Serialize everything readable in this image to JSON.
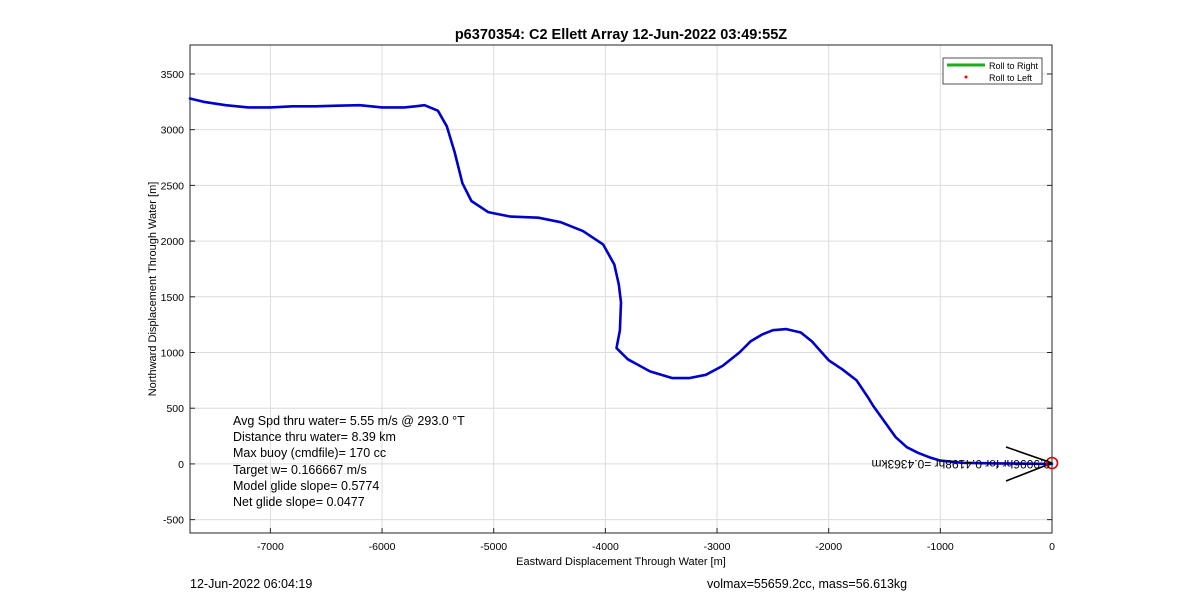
{
  "chart_data": {
    "type": "line",
    "title": "p6370354: C2 Ellett Array 12-Jun-2022 03:49:55Z",
    "xlabel": "Eastward Displacement Through Water [m]",
    "ylabel": "Northward Displacement Through Water [m]",
    "xlim": [
      -7720,
      0
    ],
    "ylim": [
      -620,
      3760
    ],
    "xticks": [
      -7000,
      -6000,
      -5000,
      -4000,
      -3000,
      -2000,
      -1000,
      0
    ],
    "yticks": [
      -500,
      0,
      500,
      1000,
      1500,
      2000,
      2500,
      3000,
      3500
    ],
    "grid": true,
    "legend": {
      "position": "top-right",
      "entries": [
        {
          "label": "Roll to Right",
          "color": "#22aa22",
          "style": "line"
        },
        {
          "label": "Roll to Left",
          "color": "#ff0000",
          "style": "dot"
        }
      ]
    },
    "series": [
      {
        "color": "#0000cc",
        "x": [
          -7720,
          -7600,
          -7400,
          -7200,
          -7000,
          -6800,
          -6600,
          -6400,
          -6200,
          -6000,
          -5800,
          -5700,
          -5620,
          -5500,
          -5420,
          -5350,
          -5280,
          -5200,
          -5050,
          -4850,
          -4600,
          -4400,
          -4200,
          -4020,
          -3920,
          -3880,
          -3860,
          -3870,
          -3900,
          -3800,
          -3600,
          -3400,
          -3250,
          -3100,
          -2950,
          -2800,
          -2700,
          -2600,
          -2500,
          -2380,
          -2250,
          -2150,
          -2000,
          -1880,
          -1750,
          -1650,
          -1600,
          -1500,
          -1400,
          -1300,
          -1200,
          -1100,
          -1000,
          -800,
          -500,
          -200,
          0
        ],
        "y": [
          3280,
          3250,
          3220,
          3200,
          3200,
          3210,
          3210,
          3215,
          3220,
          3200,
          3200,
          3210,
          3220,
          3170,
          3030,
          2800,
          2520,
          2360,
          2260,
          2220,
          2210,
          2170,
          2090,
          1970,
          1790,
          1610,
          1450,
          1200,
          1040,
          940,
          830,
          770,
          770,
          800,
          880,
          1000,
          1100,
          1160,
          1200,
          1210,
          1180,
          1100,
          930,
          850,
          750,
          600,
          520,
          380,
          240,
          150,
          100,
          60,
          30,
          10,
          5,
          2,
          0
        ]
      }
    ],
    "annotations": [
      "Avg Spd thru water=  5.55 m/s @ 293.0 °T",
      "Distance thru water=  8.39 km",
      "Max buoy (cmdfile)= 170 cc",
      "Target w= 0.166667 m/s",
      "Model glide slope= 0.5774",
      "Net glide slope= 0.0477"
    ],
    "end_label": "0.9096hr for 0.4198hr =0.4363km"
  },
  "footer": {
    "left": "12-Jun-2022 06:04:19",
    "right": "volmax=55659.2cc, mass=56.613kg"
  }
}
